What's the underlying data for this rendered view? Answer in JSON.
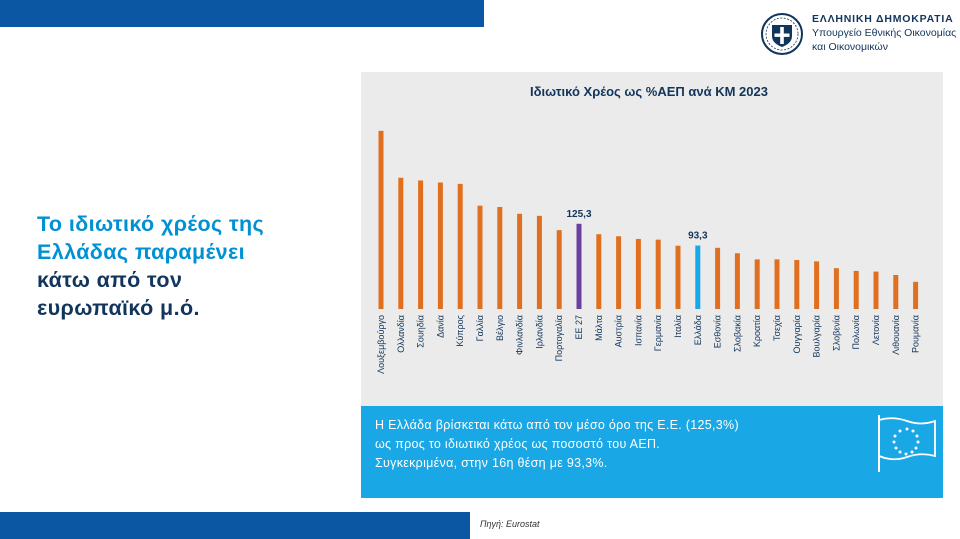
{
  "header": {
    "gov_title": "ΕΛΛΗΝΙΚΗ ΔΗΜΟΚΡΑΤΙΑ",
    "ministry_line1": "Υπουργείο Εθνικής Οικονομίας",
    "ministry_line2": "και Οικονομικών"
  },
  "headline": {
    "line1": "Το ιδιωτικό χρέος της",
    "line2": "Ελλάδας παραμένει",
    "line3": "κάτω από τον",
    "line4": "ευρωπαϊκό μ.ό."
  },
  "info_box": {
    "line1": "Η Ελλάδα βρίσκεται κάτω από τον μέσο όρο της Ε.Ε. (125,3%)",
    "line2": "ως προς το ιδιωτικό χρέος ως ποσοστό του ΑΕΠ.",
    "line3": "Συγκεκριμένα, στην 16η θέση με 93,3%."
  },
  "footer": {
    "source": "Πηγή: Eurostat"
  },
  "colors": {
    "bar_default": "#e07020",
    "bar_eu": "#6a3fa0",
    "bar_greece": "#18a8ea",
    "brand_blue": "#0b57a4"
  },
  "chart_data": {
    "type": "bar",
    "title": "Ιδιωτικό Χρέος ως %ΑΕΠ ανά ΚΜ 2023",
    "categories": [
      "Λουξεμβούργο",
      "Ολλανδία",
      "Σουηδία",
      "Δανία",
      "Κύπρος",
      "Γαλλία",
      "Βέλγιο",
      "Φινλανδία",
      "Ιρλανδία",
      "Πορτογαλία",
      "ΕΕ 27",
      "Μάλτα",
      "Αυστρία",
      "Ισπανία",
      "Γερμανία",
      "Ιταλία",
      "Ελλάδα",
      "Εσθονία",
      "Σλοβακία",
      "Κροατία",
      "Τσεχία",
      "Ουγγαρία",
      "Βουλγαρία",
      "Σλοβενία",
      "Πολωνία",
      "Λετονία",
      "Λιθουανία",
      "Ρουμανία"
    ],
    "values": [
      262,
      193,
      189,
      186,
      184,
      152,
      150,
      140,
      137,
      116,
      125.3,
      110,
      107,
      103,
      102,
      93,
      93.3,
      90,
      82,
      73,
      73,
      72,
      70,
      60,
      56,
      55,
      50,
      40
    ],
    "data_labels": [
      "",
      "",
      "",
      "",
      "",
      "",
      "",
      "",
      "",
      "",
      "125,3",
      "",
      "",
      "",
      "",
      "",
      "93,3",
      "",
      "",
      "",
      "",
      "",
      "",
      "",
      "",
      "",
      "",
      ""
    ],
    "ylim": [
      0,
      275
    ],
    "grid": false,
    "legend": "none"
  }
}
